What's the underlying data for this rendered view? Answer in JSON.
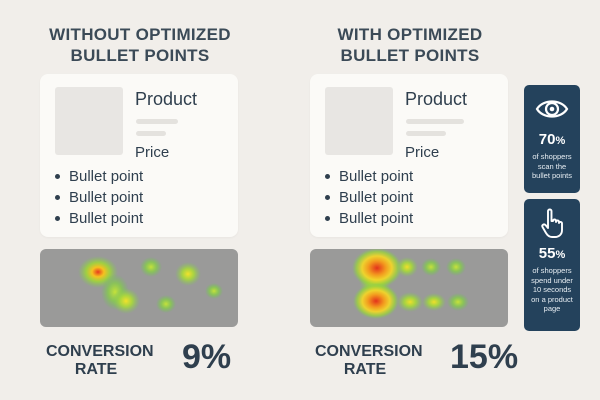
{
  "left_panel": {
    "title_line1": "WITHOUT OPTIMIZED",
    "title_line2": "BULLET POINTS",
    "product_name": "Product",
    "price": "Price",
    "bullets": [
      "Bullet point",
      "Bullet point",
      "Bullet point"
    ],
    "conversion_label_line1": "CONVERSION",
    "conversion_label_line2": "RATE",
    "conversion_value": "9%"
  },
  "right_panel": {
    "title_line1": "WITH OPTIMIZED",
    "title_line2": "BULLET POINTS",
    "product_name": "Product",
    "price": "Price",
    "bullets": [
      "Bullet point",
      "Bullet point",
      "Bullet point"
    ],
    "conversion_label_line1": "CONVERSION",
    "conversion_label_line2": "RATE",
    "conversion_value": "15%"
  },
  "stats": [
    {
      "icon": "eye-icon",
      "value": "70",
      "unit": "%",
      "description": "of shoppers scan the bullet points"
    },
    {
      "icon": "pointing-hand-icon",
      "value": "55",
      "unit": "%",
      "description": "of shoppers spend under 10 seconds on a product page"
    }
  ],
  "colors": {
    "background": "#f1eeea",
    "card": "#fbfaf7",
    "text": "#2f3f4e",
    "stat_box": "#24425c",
    "heatmap_base": "#9a9a99"
  }
}
